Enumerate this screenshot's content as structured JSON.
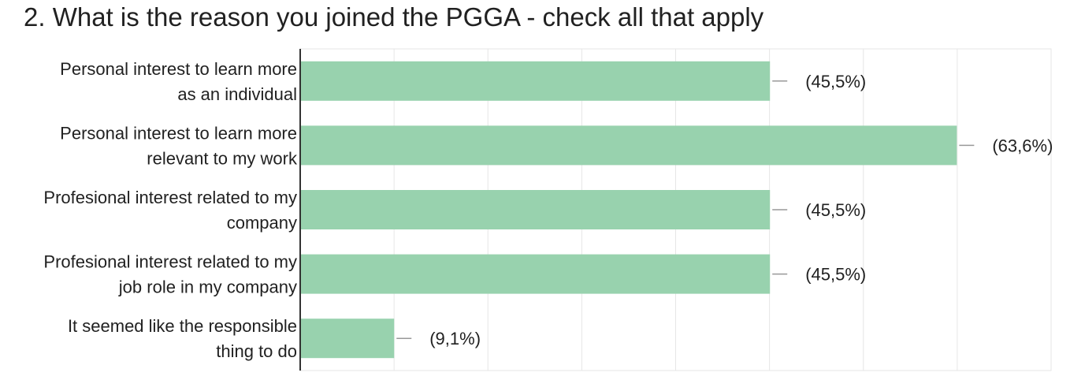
{
  "title": "2. What is the reason you joined the PGGA - check all that apply",
  "chart_data": {
    "type": "bar",
    "orientation": "horizontal",
    "title": "2. What is the reason you joined the PGGA - check all that apply",
    "categories": [
      [
        "Personal interest to learn more",
        "as an individual"
      ],
      [
        "Personal interest to learn more",
        "relevant to my work"
      ],
      [
        "Profesional interest related to my",
        "company"
      ],
      [
        "Profesional interest related to my",
        "job role in my company"
      ],
      [
        "It seemed like the responsible",
        "thing to do"
      ]
    ],
    "values": [
      45.5,
      63.6,
      45.5,
      45.5,
      9.1
    ],
    "value_labels": [
      "(45,5%)",
      "(63,6%)",
      "(45,5%)",
      "(45,5%)",
      "(9,1%)"
    ],
    "xlim": [
      0,
      72.73
    ],
    "grid": true,
    "bar_color": "#98d2ae",
    "grid_color": "#e6e6e6",
    "leader_color": "#999999"
  }
}
